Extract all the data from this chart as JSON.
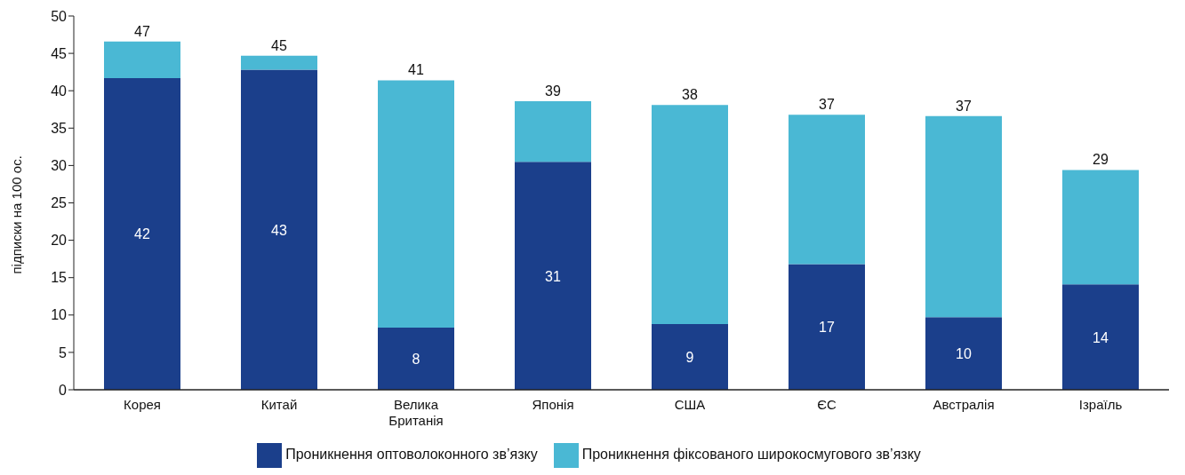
{
  "chart_data": {
    "type": "bar",
    "stacked": true,
    "ylabel": "підписки на 100 ос.",
    "categories": [
      "Корея",
      "Китай",
      "Велика Британія",
      "Японія",
      "США",
      "ЄС",
      "Австралія",
      "Ізраїль"
    ],
    "series": [
      {
        "name": "Проникнення оптоволоконного зв’язку",
        "color": "#1b3f8b",
        "values": [
          41.7,
          42.8,
          8.3,
          30.5,
          8.8,
          16.8,
          9.7,
          14.1
        ],
        "value_labels": [
          "42",
          "43",
          "8",
          "31",
          "9",
          "17",
          "10",
          "14"
        ]
      },
      {
        "name": "Проникнення фіксованого широкосмугового зв’язку",
        "color": "#4ab8d4",
        "values": [
          4.9,
          1.9,
          33.1,
          8.1,
          29.3,
          20.0,
          26.9,
          15.3
        ]
      }
    ],
    "totals": [
      "47",
      "45",
      "41",
      "39",
      "38",
      "37",
      "37",
      "29"
    ],
    "ylim": [
      0,
      50
    ],
    "yticks": [
      0,
      5,
      10,
      15,
      20,
      25,
      30,
      35,
      40,
      45,
      50
    ],
    "grid": false,
    "legend": "bottom"
  }
}
